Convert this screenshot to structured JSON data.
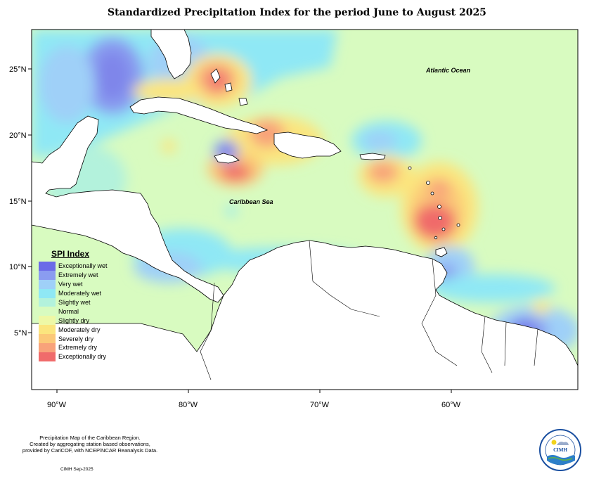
{
  "title": "Standardized Precipitation Index for the period June to August 2025",
  "axes": {
    "lat_ticks": [
      "25°N",
      "20°N",
      "15°N",
      "10°N",
      "5°N"
    ],
    "lon_ticks": [
      "90°W",
      "80°W",
      "70°W",
      "60°W"
    ]
  },
  "labels": {
    "atlantic": "Atlantic Ocean",
    "caribbean": "Caribbean Sea"
  },
  "legend": {
    "title": "SPI Index",
    "items": [
      {
        "label": "Exceptionally wet",
        "color": "#6b6be8"
      },
      {
        "label": "Extremely wet",
        "color": "#8a9cf0"
      },
      {
        "label": "Very wet",
        "color": "#9fd0f8"
      },
      {
        "label": "Moderately wet",
        "color": "#8fe8f5"
      },
      {
        "label": "Slightly wet",
        "color": "#b3f2dc"
      },
      {
        "label": "Normal",
        "color": "#d8fbc0"
      },
      {
        "label": "Slightly dry",
        "color": "#eef8a6"
      },
      {
        "label": "Moderately dry",
        "color": "#fbe57e"
      },
      {
        "label": "Severely dry",
        "color": "#fbc878"
      },
      {
        "label": "Extremely dry",
        "color": "#f8a27a"
      },
      {
        "label": "Exceptionally dry",
        "color": "#f06b6b"
      }
    ]
  },
  "footnote": {
    "line1": "Precipitation Map of the Caribbean Region.",
    "line2": "Created by aggregating station based observations,",
    "line3": "provided by CariCOF, with NCEP/NCAR Reanalysis Data."
  },
  "credit": "CIMH Sep-2025",
  "logo": {
    "text": "CIMH"
  }
}
